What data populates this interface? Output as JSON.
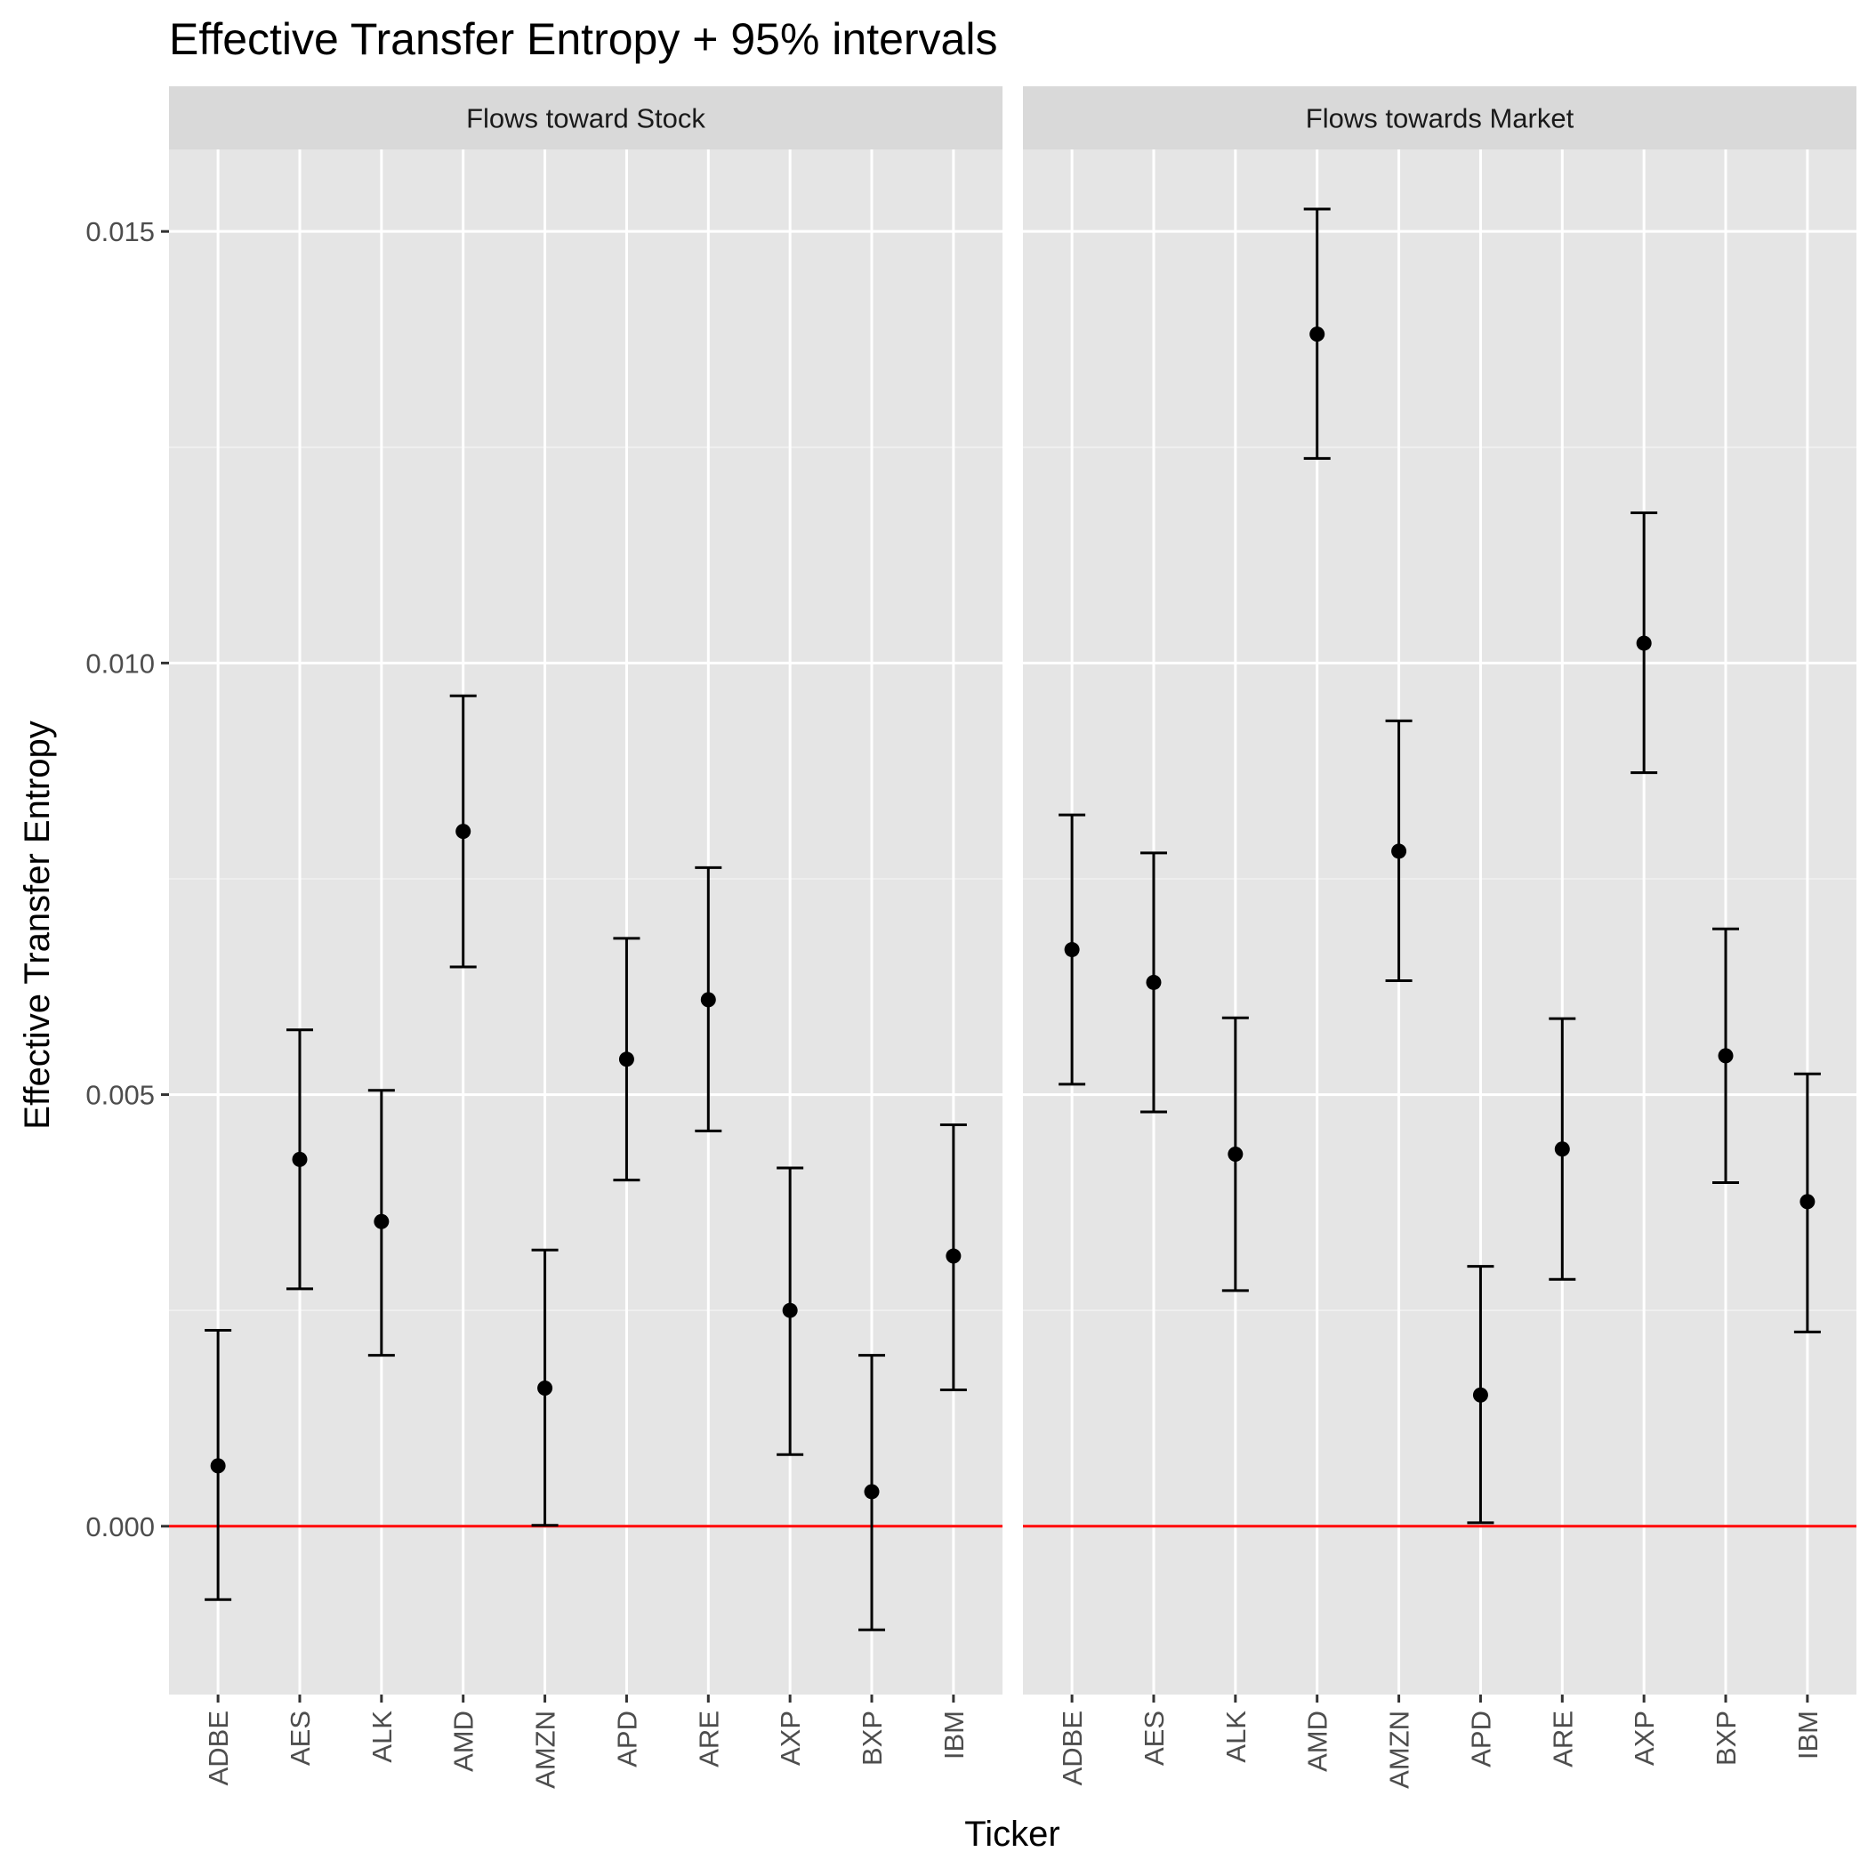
{
  "chart_data": {
    "type": "errorbar",
    "title": "Effective Transfer Entropy + 95% intervals",
    "xlabel": "Ticker",
    "ylabel": "Effective Transfer Entropy",
    "ylim": [
      -0.00195,
      0.01595
    ],
    "yticks": [
      0.0,
      0.005,
      0.01,
      0.015
    ],
    "ytick_labels": [
      "0.000",
      "0.005",
      "0.010",
      "0.015"
    ],
    "grid": true,
    "reference_line": {
      "y": 0,
      "color": "#ff0000"
    },
    "categories": [
      "ADBE",
      "AES",
      "ALK",
      "AMD",
      "AMZN",
      "APD",
      "ARE",
      "AXP",
      "BXP",
      "IBM"
    ],
    "panels": [
      {
        "name": "Flows toward Stock",
        "points": [
          {
            "x": "ADBE",
            "y": 0.0007,
            "lower": -0.00085,
            "upper": 0.00227
          },
          {
            "x": "AES",
            "y": 0.00425,
            "lower": 0.00275,
            "upper": 0.00575
          },
          {
            "x": "ALK",
            "y": 0.00353,
            "lower": 0.00198,
            "upper": 0.00505
          },
          {
            "x": "AMD",
            "y": 0.00805,
            "lower": 0.00648,
            "upper": 0.00962
          },
          {
            "x": "AMZN",
            "y": 0.0016,
            "lower": 1e-05,
            "upper": 0.0032
          },
          {
            "x": "APD",
            "y": 0.00541,
            "lower": 0.00401,
            "upper": 0.00681
          },
          {
            "x": "ARE",
            "y": 0.0061,
            "lower": 0.00458,
            "upper": 0.00763
          },
          {
            "x": "AXP",
            "y": 0.0025,
            "lower": 0.00083,
            "upper": 0.00415
          },
          {
            "x": "BXP",
            "y": 0.0004,
            "lower": -0.0012,
            "upper": 0.00198
          },
          {
            "x": "IBM",
            "y": 0.00313,
            "lower": 0.00158,
            "upper": 0.00465
          }
        ]
      },
      {
        "name": "Flows towards Market",
        "points": [
          {
            "x": "ADBE",
            "y": 0.00668,
            "lower": 0.00512,
            "upper": 0.00824
          },
          {
            "x": "AES",
            "y": 0.0063,
            "lower": 0.0048,
            "upper": 0.0078
          },
          {
            "x": "ALK",
            "y": 0.00431,
            "lower": 0.00273,
            "upper": 0.00589
          },
          {
            "x": "AMD",
            "y": 0.01381,
            "lower": 0.01237,
            "upper": 0.01526
          },
          {
            "x": "AMZN",
            "y": 0.00782,
            "lower": 0.00632,
            "upper": 0.00933
          },
          {
            "x": "APD",
            "y": 0.00152,
            "lower": 4e-05,
            "upper": 0.00301
          },
          {
            "x": "ARE",
            "y": 0.00437,
            "lower": 0.00286,
            "upper": 0.00588
          },
          {
            "x": "AXP",
            "y": 0.01023,
            "lower": 0.00873,
            "upper": 0.01174
          },
          {
            "x": "BXP",
            "y": 0.00545,
            "lower": 0.00398,
            "upper": 0.00692
          },
          {
            "x": "IBM",
            "y": 0.00376,
            "lower": 0.00225,
            "upper": 0.00524
          }
        ]
      }
    ]
  }
}
